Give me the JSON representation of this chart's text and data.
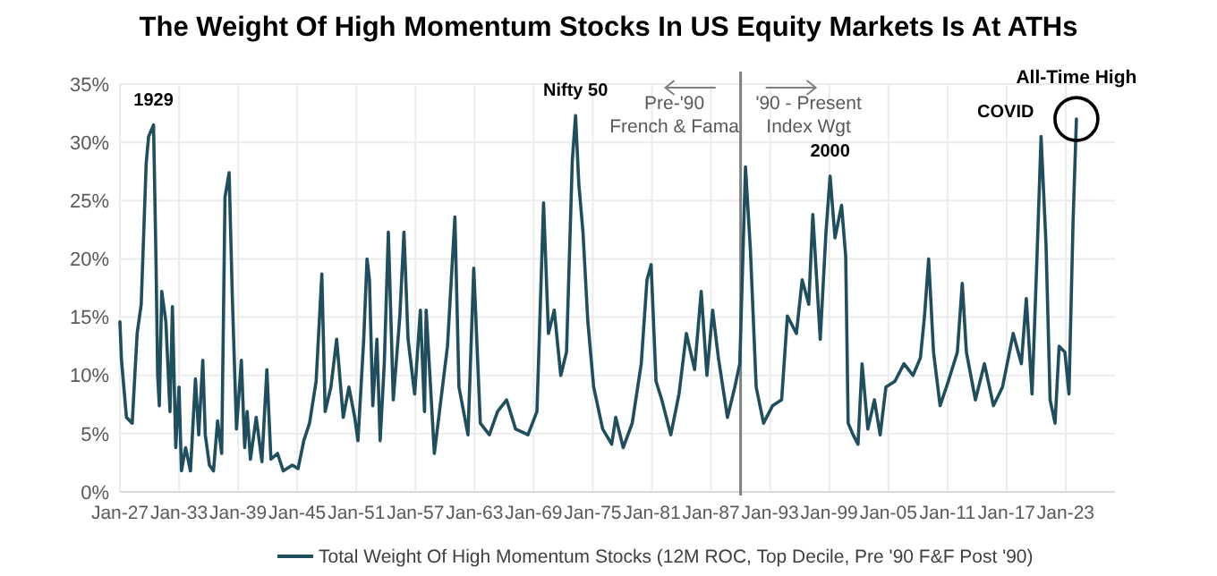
{
  "chart_data": {
    "type": "line",
    "title": "The Weight Of High Momentum Stocks In US Equity Markets Is At ATHs",
    "xlim": [
      "1927-01",
      "2028-01"
    ],
    "xticks": [
      {
        "value": "1927-01",
        "label": "Jan-27"
      },
      {
        "value": "1933-01",
        "label": "Jan-33"
      },
      {
        "value": "1939-01",
        "label": "Jan-39"
      },
      {
        "value": "1945-01",
        "label": "Jan-45"
      },
      {
        "value": "1951-01",
        "label": "Jan-51"
      },
      {
        "value": "1957-01",
        "label": "Jan-57"
      },
      {
        "value": "1963-01",
        "label": "Jan-63"
      },
      {
        "value": "1969-01",
        "label": "Jan-69"
      },
      {
        "value": "1975-01",
        "label": "Jan-75"
      },
      {
        "value": "1981-01",
        "label": "Jan-81"
      },
      {
        "value": "1987-01",
        "label": "Jan-87"
      },
      {
        "value": "1993-01",
        "label": "Jan-93"
      },
      {
        "value": "1999-01",
        "label": "Jan-99"
      },
      {
        "value": "2005-01",
        "label": "Jan-05"
      },
      {
        "value": "2011-01",
        "label": "Jan-11"
      },
      {
        "value": "2017-01",
        "label": "Jan-17"
      },
      {
        "value": "2023-01",
        "label": "Jan-23"
      }
    ],
    "ylim": [
      0,
      35
    ],
    "yticks": [
      {
        "value": 0,
        "label": "0%"
      },
      {
        "value": 5,
        "label": "5%"
      },
      {
        "value": 10,
        "label": "10%"
      },
      {
        "value": 15,
        "label": "15%"
      },
      {
        "value": 20,
        "label": "20%"
      },
      {
        "value": 25,
        "label": "25%"
      },
      {
        "value": 30,
        "label": "30%"
      },
      {
        "value": 35,
        "label": "35%"
      }
    ],
    "grid": true,
    "legend": "bottom",
    "line_style": "solid",
    "ref_lines": [
      {
        "axis": "x",
        "value": "1990-01",
        "color": "#7f7f7f"
      }
    ],
    "annotations": [
      {
        "text": "1929",
        "x": "1930-06",
        "y": 31.5
      },
      {
        "text": "Nifty 50",
        "x": "1973-04",
        "y": 32.3
      },
      {
        "text": "2000",
        "x": "1999-02",
        "y": 27.1
      },
      {
        "text": "COVID",
        "x": "2020-07",
        "y": 30.5
      },
      {
        "text": "All-Time High",
        "x": "2024-02",
        "y": 32
      },
      "Pre-'90\nFrench & Fama",
      "'90 - Present\nIndex Wgt"
    ],
    "series": [
      {
        "name": "Total Weight Of High Momentum Stocks (12M ROC, Top Decile, Pre '90 F&F Post '90)",
        "color": "#1f4e5f",
        "x": [
          "1927-01",
          "1927-03",
          "1927-09",
          "1928-04",
          "1928-10",
          "1929-03",
          "1929-09",
          "1929-12",
          "1930-06",
          "1930-09",
          "1930-11",
          "1931-01",
          "1931-04",
          "1931-09",
          "1932-02",
          "1932-05",
          "1932-09",
          "1933-01",
          "1933-04",
          "1933-09",
          "1934-03",
          "1934-09",
          "1935-01",
          "1935-06",
          "1935-09",
          "1936-02",
          "1936-07",
          "1936-12",
          "1937-05",
          "1937-09",
          "1938-02",
          "1938-06",
          "1938-11",
          "1939-05",
          "1939-09",
          "1939-12",
          "1940-04",
          "1940-11",
          "1941-06",
          "1941-12",
          "1942-05",
          "1943-01",
          "1943-08",
          "1944-07",
          "1945-02",
          "1945-09",
          "1946-04",
          "1946-12",
          "1947-07",
          "1947-11",
          "1948-06",
          "1949-01",
          "1949-09",
          "1950-04",
          "1950-11",
          "1951-03",
          "1951-10",
          "1952-02",
          "1952-05",
          "1952-09",
          "1953-02",
          "1953-06",
          "1953-11",
          "1954-04",
          "1954-10",
          "1955-06",
          "1955-11",
          "1956-04",
          "1956-12",
          "1957-07",
          "1957-12",
          "1958-02",
          "1958-12",
          "1959-08",
          "1960-04",
          "1961-01",
          "1961-06",
          "1962-05",
          "1962-12",
          "1963-08",
          "1964-07",
          "1965-05",
          "1966-04",
          "1967-03",
          "1968-06",
          "1969-05",
          "1970-01",
          "1970-07",
          "1971-02",
          "1971-10",
          "1972-05",
          "1972-12",
          "1973-04",
          "1973-08",
          "1974-01",
          "1974-07",
          "1975-02",
          "1976-01",
          "1976-12",
          "1977-05",
          "1978-02",
          "1979-01",
          "1979-12",
          "1980-07",
          "1980-12",
          "1981-06",
          "1982-01",
          "1982-12",
          "1983-10",
          "1984-07",
          "1985-05",
          "1986-01",
          "1986-08",
          "1987-03",
          "1987-10",
          "1988-09",
          "1989-06",
          "1989-12",
          "1990-07",
          "1991-01",
          "1991-08",
          "1992-05",
          "1993-04",
          "1994-03",
          "1994-10",
          "1995-09",
          "1996-04",
          "1996-12",
          "1997-05",
          "1998-02",
          "1998-09",
          "1999-02",
          "1999-08",
          "2000-04",
          "2000-09",
          "2000-12",
          "2001-06",
          "2001-12",
          "2002-05",
          "2002-12",
          "2003-08",
          "2004-03",
          "2004-10",
          "2005-09",
          "2006-08",
          "2007-07",
          "2008-04",
          "2008-09",
          "2009-02",
          "2009-08",
          "2010-04",
          "2011-02",
          "2012-01",
          "2012-07",
          "2012-12",
          "2013-11",
          "2014-10",
          "2015-09",
          "2016-08",
          "2017-09",
          "2018-07",
          "2019-01",
          "2019-08",
          "2020-02",
          "2020-07",
          "2021-01",
          "2021-06",
          "2021-12",
          "2022-05",
          "2022-12",
          "2023-05",
          "2023-10",
          "2024-02"
        ],
        "values": [
          14.6,
          11.3,
          6.4,
          5.9,
          13.6,
          16.1,
          28.2,
          30.5,
          31.5,
          19.7,
          10.0,
          7.4,
          17.2,
          14.6,
          6.9,
          15.9,
          3.8,
          9.0,
          1.8,
          3.8,
          1.8,
          9.7,
          4.9,
          11.3,
          4.9,
          2.3,
          1.8,
          6.1,
          3.3,
          25.3,
          27.4,
          16.6,
          5.4,
          11.3,
          3.8,
          6.9,
          2.8,
          6.4,
          2.6,
          10.5,
          2.8,
          3.3,
          1.8,
          2.3,
          2.0,
          4.4,
          5.9,
          9.5,
          18.7,
          6.9,
          9.0,
          13.1,
          6.4,
          9.0,
          6.4,
          4.4,
          13.1,
          20.0,
          18.2,
          7.4,
          13.1,
          4.4,
          11.0,
          22.3,
          7.9,
          15.1,
          22.3,
          13.1,
          8.4,
          15.6,
          6.9,
          15.6,
          3.3,
          7.9,
          12.5,
          23.6,
          9.0,
          4.9,
          19.2,
          5.9,
          4.9,
          6.9,
          7.9,
          5.4,
          4.9,
          6.9,
          24.8,
          13.6,
          15.6,
          10.0,
          12.0,
          28.4,
          32.3,
          26.4,
          22.3,
          14.6,
          9.0,
          5.4,
          4.1,
          6.4,
          3.8,
          5.9,
          11.0,
          18.2,
          19.5,
          9.5,
          7.9,
          4.9,
          8.4,
          13.6,
          10.5,
          17.2,
          10.0,
          15.6,
          11.5,
          6.4,
          9.0,
          11.0,
          27.9,
          20.7,
          9.0,
          5.9,
          7.4,
          7.9,
          15.1,
          13.6,
          18.2,
          16.1,
          23.8,
          13.1,
          22.3,
          27.1,
          21.8,
          24.6,
          20.2,
          5.9,
          4.9,
          4.1,
          11.0,
          5.4,
          7.9,
          4.9,
          9.0,
          9.5,
          11.0,
          10.0,
          11.5,
          15.1,
          20.0,
          12.0,
          7.4,
          9.5,
          12.0,
          17.9,
          12.0,
          7.9,
          11.0,
          7.4,
          9.0,
          13.6,
          11.0,
          16.6,
          8.4,
          20.2,
          30.5,
          21.2,
          7.9,
          5.9,
          12.5,
          12.0,
          8.4,
          23.3,
          32.0
        ]
      }
    ]
  }
}
